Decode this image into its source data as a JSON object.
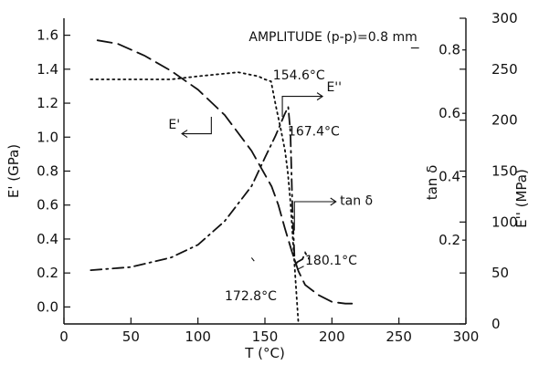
{
  "chart_data": {
    "type": "line",
    "xlabel": "T (°C)",
    "ylabel_left": "E' (GPa)",
    "ylabel_right_outer": "E'' (MPa)",
    "ylabel_right_inner": "tan δ",
    "x_range": [
      0,
      300
    ],
    "x_ticks": [
      "0",
      "50",
      "100",
      "150",
      "200",
      "250",
      "300"
    ],
    "y_left_range": [
      -0.1,
      1.7
    ],
    "y_left_ticks": [
      "0.0",
      "0.2",
      "0.4",
      "0.6",
      "0.8",
      "1.0",
      "1.2",
      "1.4",
      "1.6"
    ],
    "y_right_outer_range": [
      0,
      300
    ],
    "y_right_outer_ticks": [
      "0",
      "50",
      "100",
      "150",
      "200",
      "250",
      "300"
    ],
    "y_right_inner_range": [
      -0.0645,
      0.9
    ],
    "y_right_inner_ticks": [
      "0.2",
      "0.4",
      "0.6",
      "0.8"
    ],
    "legend_placement": "inline labels with arrows",
    "grid": false,
    "annotations": [
      {
        "text": "AMPLITUDE (p-p)=0.8 mm",
        "name": "amplitude-label"
      },
      {
        "text": "154.6°C",
        "name": "annot-154-6"
      },
      {
        "text": "167.4°C",
        "name": "annot-167-4"
      },
      {
        "text": "180.1°C",
        "name": "annot-180-1"
      },
      {
        "text": "172.8°C",
        "name": "annot-172-8"
      }
    ],
    "series": [
      {
        "name": "E'",
        "axis": "left",
        "style": "dashed",
        "x": [
          25,
          40,
          60,
          80,
          100,
          120,
          140,
          155,
          160,
          165,
          170,
          175,
          180,
          190,
          200,
          210,
          215
        ],
        "y": [
          1.57,
          1.55,
          1.48,
          1.39,
          1.28,
          1.13,
          0.92,
          0.71,
          0.6,
          0.46,
          0.33,
          0.21,
          0.13,
          0.07,
          0.03,
          0.02,
          0.02
        ]
      },
      {
        "name": "E''",
        "axis": "right_outer",
        "style": "dotted",
        "x": [
          20,
          50,
          80,
          100,
          130,
          145,
          150,
          154.6,
          158,
          162,
          165,
          167,
          169,
          171,
          173,
          175
        ],
        "y": [
          240,
          240,
          240,
          243,
          247,
          243,
          240,
          238,
          215,
          190,
          170,
          150,
          120,
          80,
          40,
          0
        ]
      },
      {
        "name": "tan δ",
        "axis": "right_inner",
        "style": "dashdot",
        "x": [
          20,
          50,
          80,
          100,
          120,
          140,
          150,
          158,
          162,
          165,
          167.4,
          169,
          170.5,
          172,
          172.8,
          174,
          178,
          180.1,
          183
        ],
        "y": [
          0.105,
          0.115,
          0.145,
          0.185,
          0.26,
          0.37,
          0.46,
          0.53,
          0.57,
          0.6,
          0.62,
          0.54,
          0.3,
          0.15,
          0.12,
          0.13,
          0.14,
          0.16,
          0.14
        ]
      }
    ]
  }
}
